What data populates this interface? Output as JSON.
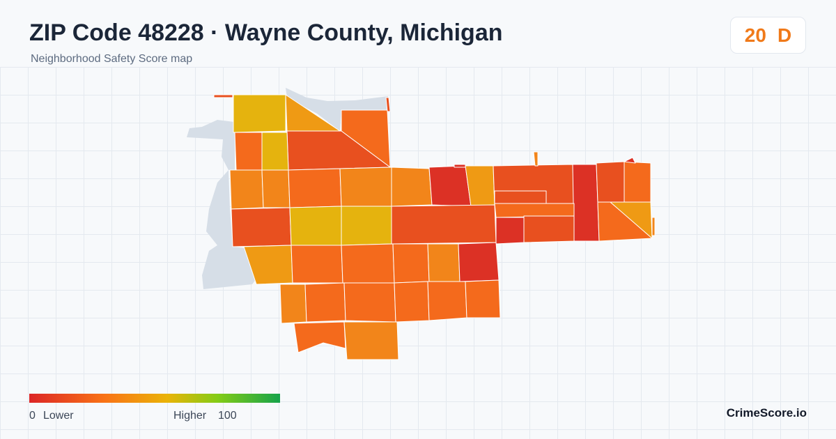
{
  "header": {
    "title": "ZIP Code 48228 · Wayne County, Michigan",
    "subtitle": "Neighborhood Safety Score map"
  },
  "score_badge": {
    "score": "20",
    "grade": "D",
    "color": "#f07a1a"
  },
  "legend": {
    "min_value": "0",
    "min_label": "Lower",
    "max_label": "Higher",
    "max_value": "100",
    "gradient_colors": [
      "#dc2626",
      "#f97316",
      "#eab308",
      "#84cc16",
      "#16a34a"
    ]
  },
  "brand": "CrimeScore.io",
  "colors": {
    "background": "#f7f9fb",
    "grid": "#e4e9ef",
    "water": "#d6dee7",
    "low_red": "#dc3125",
    "red_orange": "#e8501f",
    "orange": "#f46a1c",
    "orange_light": "#f2851a",
    "amber": "#ef9a14",
    "yellow": "#e5b30e"
  }
}
